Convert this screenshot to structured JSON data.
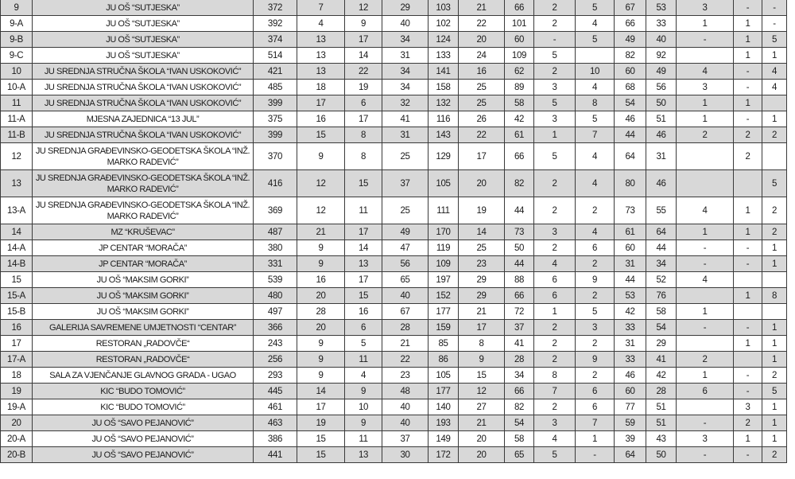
{
  "table": {
    "rows": [
      {
        "id": "9",
        "name": "JU OŠ “SUTJESKA”",
        "v": [
          "372",
          "7",
          "12",
          "29",
          "103",
          "21",
          "66",
          "2",
          "5",
          "67",
          "53",
          "3",
          "-",
          "-"
        ]
      },
      {
        "id": "9-A",
        "name": "JU OŠ “SUTJESKA”",
        "v": [
          "392",
          "4",
          "9",
          "40",
          "102",
          "22",
          "101",
          "2",
          "4",
          "66",
          "33",
          "1",
          "1",
          "-"
        ]
      },
      {
        "id": "9-B",
        "name": "JU OŠ “SUTJESKA”",
        "v": [
          "374",
          "13",
          "17",
          "34",
          "124",
          "20",
          "60",
          "-",
          "5",
          "49",
          "40",
          "-",
          "1",
          "5"
        ]
      },
      {
        "id": "9-C",
        "name": "JU OŠ “SUTJESKA”",
        "v": [
          "514",
          "13",
          "14",
          "31",
          "133",
          "24",
          "109",
          "5",
          "",
          "82",
          "92",
          "",
          "1",
          "1"
        ]
      },
      {
        "id": "10",
        "name": "JU SREDNJA STRUČNA ŠKOLA “IVAN USKOKOVIĆ”",
        "v": [
          "421",
          "13",
          "22",
          "34",
          "141",
          "16",
          "62",
          "2",
          "10",
          "60",
          "49",
          "4",
          "-",
          "4"
        ]
      },
      {
        "id": "10-A",
        "name": "JU SREDNJA STRUČNA ŠKOLA “IVAN USKOKOVIĆ”",
        "v": [
          "485",
          "18",
          "19",
          "34",
          "158",
          "25",
          "89",
          "3",
          "4",
          "68",
          "56",
          "3",
          "-",
          "4"
        ]
      },
      {
        "id": "11",
        "name": "JU SREDNJA STRUČNA ŠKOLA “IVAN USKOKOVIĆ”",
        "v": [
          "399",
          "17",
          "6",
          "32",
          "132",
          "25",
          "58",
          "5",
          "8",
          "54",
          "50",
          "1",
          "1",
          ""
        ]
      },
      {
        "id": "11-A",
        "name": "MJESNA ZAJEDNICA “13 JUL”",
        "v": [
          "375",
          "16",
          "17",
          "41",
          "116",
          "26",
          "42",
          "3",
          "5",
          "46",
          "51",
          "1",
          "-",
          "1"
        ]
      },
      {
        "id": "11-B",
        "name": "JU SREDNJA STRUČNA ŠKOLA “IVAN USKOKOVIĆ”",
        "v": [
          "399",
          "15",
          "8",
          "31",
          "143",
          "22",
          "61",
          "1",
          "7",
          "44",
          "46",
          "2",
          "2",
          "2"
        ]
      },
      {
        "id": "12",
        "name": "JU SREDNJA GRAĐEVINSKO-GEODETSKA ŠKOLA “INŽ. MARKO RADEVIĆ”",
        "v": [
          "370",
          "9",
          "8",
          "25",
          "129",
          "17",
          "66",
          "5",
          "4",
          "64",
          "31",
          "",
          "2",
          ""
        ]
      },
      {
        "id": "13",
        "name": "JU SREDNJA GRAĐEVINSKO-GEODETSKA ŠKOLA “INŽ. MARKO RADEVIĆ”",
        "v": [
          "416",
          "12",
          "15",
          "37",
          "105",
          "20",
          "82",
          "2",
          "4",
          "80",
          "46",
          "",
          "",
          "5"
        ]
      },
      {
        "id": "13-A",
        "name": "JU SREDNJA GRAĐEVINSKO-GEODETSKA ŠKOLA “INŽ. MARKO RADEVIĆ”",
        "v": [
          "369",
          "12",
          "11",
          "25",
          "111",
          "19",
          "44",
          "2",
          "2",
          "73",
          "55",
          "4",
          "1",
          "2"
        ]
      },
      {
        "id": "14",
        "name": "MZ “KRUŠEVAC”",
        "v": [
          "487",
          "21",
          "17",
          "49",
          "170",
          "14",
          "73",
          "3",
          "4",
          "61",
          "64",
          "1",
          "1",
          "2"
        ]
      },
      {
        "id": "14-A",
        "name": "JP CENTAR “MORAČA”",
        "v": [
          "380",
          "9",
          "14",
          "47",
          "119",
          "25",
          "50",
          "2",
          "6",
          "60",
          "44",
          "-",
          "-",
          "1"
        ]
      },
      {
        "id": "14-B",
        "name": "JP CENTAR “MORAČA”",
        "v": [
          "331",
          "9",
          "13",
          "56",
          "109",
          "23",
          "44",
          "4",
          "2",
          "31",
          "34",
          "-",
          "-",
          "1"
        ]
      },
      {
        "id": "15",
        "name": "JU OŠ “MAKSIM GORKI”",
        "v": [
          "539",
          "16",
          "17",
          "65",
          "197",
          "29",
          "88",
          "6",
          "9",
          "44",
          "52",
          "4",
          "",
          ""
        ]
      },
      {
        "id": "15-A",
        "name": "JU OŠ “MAKSIM GORKI”",
        "v": [
          "480",
          "20",
          "15",
          "40",
          "152",
          "29",
          "66",
          "6",
          "2",
          "53",
          "76",
          "",
          "1",
          "8"
        ]
      },
      {
        "id": "15-B",
        "name": "JU OŠ “MAKSIM GORKI”",
        "v": [
          "497",
          "28",
          "16",
          "67",
          "177",
          "21",
          "72",
          "1",
          "5",
          "42",
          "58",
          "1",
          "",
          ""
        ]
      },
      {
        "id": "16",
        "name": "GALERIJA SAVREMENE UMJETNOSTI “CENTAR”",
        "v": [
          "366",
          "20",
          "6",
          "28",
          "159",
          "17",
          "37",
          "2",
          "3",
          "33",
          "54",
          "-",
          "-",
          "1"
        ]
      },
      {
        "id": "17",
        "name": "RESTORAN  „RADOVČE“",
        "v": [
          "243",
          "9",
          "5",
          "21",
          "85",
          "8",
          "41",
          "2",
          "2",
          "31",
          "29",
          "",
          "1",
          "1"
        ]
      },
      {
        "id": "17-A",
        "name": "RESTORAN  „RADOVČE“",
        "v": [
          "256",
          "9",
          "11",
          "22",
          "86",
          "9",
          "28",
          "2",
          "9",
          "33",
          "41",
          "2",
          "",
          "1"
        ]
      },
      {
        "id": "18",
        "name": "SALA ZA VJENČANJE GLAVNOG GRADA - UGAO",
        "v": [
          "293",
          "9",
          "4",
          "23",
          "105",
          "15",
          "34",
          "8",
          "2",
          "46",
          "42",
          "1",
          "-",
          "2"
        ]
      },
      {
        "id": "19",
        "name": "KIC “BUDO TOMOVIĆ”",
        "v": [
          "445",
          "14",
          "9",
          "48",
          "177",
          "12",
          "66",
          "7",
          "6",
          "60",
          "28",
          "6",
          "-",
          "5"
        ]
      },
      {
        "id": "19-A",
        "name": "KIC “BUDO TOMOVIĆ”",
        "v": [
          "461",
          "17",
          "10",
          "40",
          "140",
          "27",
          "82",
          "2",
          "6",
          "77",
          "51",
          "",
          "3",
          "1"
        ]
      },
      {
        "id": "20",
        "name": "JU OŠ “SAVO PEJANOVIĆ”",
        "v": [
          "463",
          "19",
          "9",
          "40",
          "193",
          "21",
          "54",
          "3",
          "7",
          "59",
          "51",
          "-",
          "2",
          "1"
        ]
      },
      {
        "id": "20-A",
        "name": "JU OŠ “SAVO PEJANOVIĆ”",
        "v": [
          "386",
          "15",
          "11",
          "37",
          "149",
          "20",
          "58",
          "4",
          "1",
          "39",
          "43",
          "3",
          "1",
          "1"
        ]
      },
      {
        "id": "20-B",
        "name": "JU OŠ “SAVO PEJANOVIĆ”",
        "v": [
          "441",
          "15",
          "13",
          "30",
          "172",
          "20",
          "65",
          "5",
          "-",
          "64",
          "50",
          "-",
          "-",
          "2"
        ]
      }
    ],
    "colors": {
      "stripe": "#d8d8d8",
      "border": "#3a3a3a"
    }
  }
}
